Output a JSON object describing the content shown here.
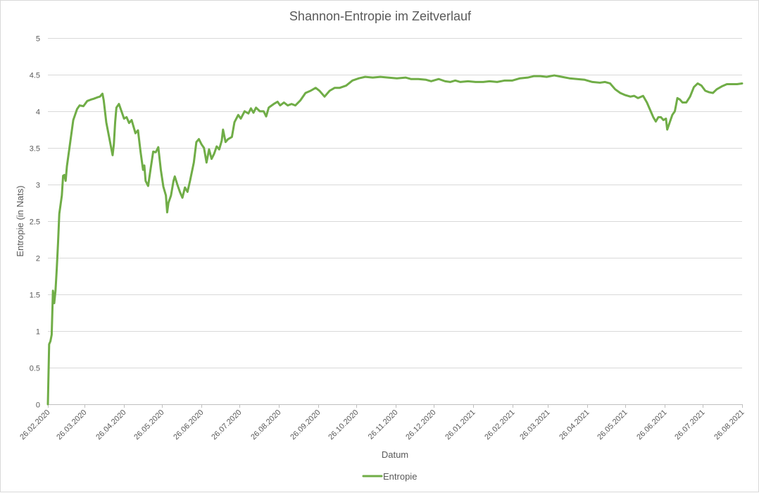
{
  "chart_data": {
    "type": "line",
    "title": "Shannon-Entropie  im Zeitverlauf",
    "xlabel": "Datum",
    "ylabel": "Entropie (in Nats)",
    "ylim": [
      0,
      5
    ],
    "yticks": [
      "0",
      "0.5",
      "1",
      "1.5",
      "2",
      "2.5",
      "3",
      "3.5",
      "4",
      "4.5",
      "5"
    ],
    "xlim": [
      "2020-02-26",
      "2021-08-26"
    ],
    "xticks": [
      "26.02.2020",
      "26.03.2020",
      "26.04.2020",
      "26.05.2020",
      "26.06.2020",
      "26.07.2020",
      "26.08.2020",
      "26.09.2020",
      "26.10.2020",
      "26.11.2020",
      "26.12.2020",
      "26.01.2021",
      "26.02.2021",
      "26.03.2021",
      "26.04.2021",
      "26.05.2021",
      "26.06.2021",
      "26.07.2021",
      "26.08.2021"
    ],
    "grid": true,
    "legend_position": "bottom",
    "series": [
      {
        "name": "Entropie",
        "color": "#70ad47",
        "points": [
          [
            "2020-02-26",
            0.0
          ],
          [
            "2020-02-27",
            0.82
          ],
          [
            "2020-02-28",
            0.86
          ],
          [
            "2020-02-29",
            0.95
          ],
          [
            "2020-03-01",
            1.55
          ],
          [
            "2020-03-02",
            1.38
          ],
          [
            "2020-03-03",
            1.55
          ],
          [
            "2020-03-04",
            1.85
          ],
          [
            "2020-03-05",
            2.2
          ],
          [
            "2020-03-06",
            2.6
          ],
          [
            "2020-03-08",
            2.85
          ],
          [
            "2020-03-09",
            3.12
          ],
          [
            "2020-03-10",
            3.13
          ],
          [
            "2020-03-11",
            3.05
          ],
          [
            "2020-03-12",
            3.25
          ],
          [
            "2020-03-14",
            3.5
          ],
          [
            "2020-03-17",
            3.88
          ],
          [
            "2020-03-20",
            4.03
          ],
          [
            "2020-03-22",
            4.08
          ],
          [
            "2020-03-25",
            4.07
          ],
          [
            "2020-03-28",
            4.14
          ],
          [
            "2020-03-31",
            4.16
          ],
          [
            "2020-04-02",
            4.17
          ],
          [
            "2020-04-05",
            4.19
          ],
          [
            "2020-04-07",
            4.2
          ],
          [
            "2020-04-09",
            4.24
          ],
          [
            "2020-04-10",
            4.15
          ],
          [
            "2020-04-12",
            3.85
          ],
          [
            "2020-04-15",
            3.58
          ],
          [
            "2020-04-17",
            3.4
          ],
          [
            "2020-04-18",
            3.55
          ],
          [
            "2020-04-19",
            3.85
          ],
          [
            "2020-04-20",
            4.05
          ],
          [
            "2020-04-22",
            4.1
          ],
          [
            "2020-04-24",
            4.0
          ],
          [
            "2020-04-26",
            3.9
          ],
          [
            "2020-04-28",
            3.92
          ],
          [
            "2020-04-30",
            3.84
          ],
          [
            "2020-05-02",
            3.88
          ],
          [
            "2020-05-05",
            3.7
          ],
          [
            "2020-05-07",
            3.74
          ],
          [
            "2020-05-09",
            3.45
          ],
          [
            "2020-05-11",
            3.2
          ],
          [
            "2020-05-12",
            3.26
          ],
          [
            "2020-05-13",
            3.05
          ],
          [
            "2020-05-15",
            2.98
          ],
          [
            "2020-05-17",
            3.22
          ],
          [
            "2020-05-19",
            3.45
          ],
          [
            "2020-05-21",
            3.44
          ],
          [
            "2020-05-23",
            3.51
          ],
          [
            "2020-05-25",
            3.2
          ],
          [
            "2020-05-27",
            2.97
          ],
          [
            "2020-05-29",
            2.85
          ],
          [
            "2020-05-30",
            2.62
          ],
          [
            "2020-05-31",
            2.75
          ],
          [
            "2020-06-02",
            2.85
          ],
          [
            "2020-06-04",
            3.05
          ],
          [
            "2020-06-05",
            3.11
          ],
          [
            "2020-06-07",
            3.0
          ],
          [
            "2020-06-09",
            2.9
          ],
          [
            "2020-06-11",
            2.82
          ],
          [
            "2020-06-13",
            2.96
          ],
          [
            "2020-06-15",
            2.9
          ],
          [
            "2020-06-17",
            3.05
          ],
          [
            "2020-06-20",
            3.3
          ],
          [
            "2020-06-22",
            3.58
          ],
          [
            "2020-06-24",
            3.62
          ],
          [
            "2020-06-26",
            3.55
          ],
          [
            "2020-06-28",
            3.5
          ],
          [
            "2020-06-30",
            3.3
          ],
          [
            "2020-07-02",
            3.48
          ],
          [
            "2020-07-04",
            3.35
          ],
          [
            "2020-07-06",
            3.42
          ],
          [
            "2020-07-08",
            3.52
          ],
          [
            "2020-07-10",
            3.48
          ],
          [
            "2020-07-12",
            3.6
          ],
          [
            "2020-07-13",
            3.75
          ],
          [
            "2020-07-15",
            3.58
          ],
          [
            "2020-07-17",
            3.62
          ],
          [
            "2020-07-20",
            3.65
          ],
          [
            "2020-07-22",
            3.85
          ],
          [
            "2020-07-25",
            3.95
          ],
          [
            "2020-07-27",
            3.9
          ],
          [
            "2020-07-30",
            4.0
          ],
          [
            "2020-08-02",
            3.97
          ],
          [
            "2020-08-04",
            4.04
          ],
          [
            "2020-08-06",
            3.98
          ],
          [
            "2020-08-08",
            4.05
          ],
          [
            "2020-08-11",
            4.0
          ],
          [
            "2020-08-14",
            4.0
          ],
          [
            "2020-08-16",
            3.93
          ],
          [
            "2020-08-18",
            4.05
          ],
          [
            "2020-08-22",
            4.1
          ],
          [
            "2020-08-25",
            4.13
          ],
          [
            "2020-08-27",
            4.08
          ],
          [
            "2020-08-30",
            4.12
          ],
          [
            "2020-09-02",
            4.08
          ],
          [
            "2020-09-05",
            4.1
          ],
          [
            "2020-09-08",
            4.08
          ],
          [
            "2020-09-12",
            4.15
          ],
          [
            "2020-09-16",
            4.25
          ],
          [
            "2020-09-20",
            4.28
          ],
          [
            "2020-09-24",
            4.32
          ],
          [
            "2020-09-27",
            4.28
          ],
          [
            "2020-10-01",
            4.2
          ],
          [
            "2020-10-05",
            4.28
          ],
          [
            "2020-10-09",
            4.32
          ],
          [
            "2020-10-13",
            4.32
          ],
          [
            "2020-10-18",
            4.35
          ],
          [
            "2020-10-23",
            4.42
          ],
          [
            "2020-10-28",
            4.45
          ],
          [
            "2020-11-02",
            4.47
          ],
          [
            "2020-11-08",
            4.46
          ],
          [
            "2020-11-14",
            4.47
          ],
          [
            "2020-11-20",
            4.46
          ],
          [
            "2020-11-27",
            4.45
          ],
          [
            "2020-12-04",
            4.46
          ],
          [
            "2020-12-08",
            4.44
          ],
          [
            "2020-12-14",
            4.44
          ],
          [
            "2020-12-20",
            4.43
          ],
          [
            "2020-12-24",
            4.41
          ],
          [
            "2020-12-30",
            4.44
          ],
          [
            "2021-01-04",
            4.41
          ],
          [
            "2021-01-08",
            4.4
          ],
          [
            "2021-01-12",
            4.42
          ],
          [
            "2021-01-16",
            4.4
          ],
          [
            "2021-01-22",
            4.41
          ],
          [
            "2021-01-28",
            4.4
          ],
          [
            "2021-02-03",
            4.4
          ],
          [
            "2021-02-08",
            4.41
          ],
          [
            "2021-02-14",
            4.4
          ],
          [
            "2021-02-20",
            4.42
          ],
          [
            "2021-02-26",
            4.42
          ],
          [
            "2021-03-04",
            4.45
          ],
          [
            "2021-03-10",
            4.46
          ],
          [
            "2021-03-15",
            4.48
          ],
          [
            "2021-03-20",
            4.48
          ],
          [
            "2021-03-25",
            4.47
          ],
          [
            "2021-03-31",
            4.49
          ],
          [
            "2021-04-06",
            4.47
          ],
          [
            "2021-04-12",
            4.45
          ],
          [
            "2021-04-18",
            4.44
          ],
          [
            "2021-04-24",
            4.43
          ],
          [
            "2021-04-30",
            4.4
          ],
          [
            "2021-05-06",
            4.39
          ],
          [
            "2021-05-10",
            4.4
          ],
          [
            "2021-05-14",
            4.38
          ],
          [
            "2021-05-18",
            4.3
          ],
          [
            "2021-05-22",
            4.25
          ],
          [
            "2021-05-26",
            4.22
          ],
          [
            "2021-05-30",
            4.2
          ],
          [
            "2021-06-02",
            4.21
          ],
          [
            "2021-06-05",
            4.18
          ],
          [
            "2021-06-09",
            4.21
          ],
          [
            "2021-06-12",
            4.12
          ],
          [
            "2021-06-15",
            4.0
          ],
          [
            "2021-06-17",
            3.92
          ],
          [
            "2021-06-19",
            3.86
          ],
          [
            "2021-06-21",
            3.92
          ],
          [
            "2021-06-23",
            3.92
          ],
          [
            "2021-06-25",
            3.88
          ],
          [
            "2021-06-27",
            3.9
          ],
          [
            "2021-06-28",
            3.75
          ],
          [
            "2021-06-30",
            3.85
          ],
          [
            "2021-07-02",
            3.95
          ],
          [
            "2021-07-04",
            4.0
          ],
          [
            "2021-07-06",
            4.18
          ],
          [
            "2021-07-08",
            4.16
          ],
          [
            "2021-07-10",
            4.12
          ],
          [
            "2021-07-13",
            4.12
          ],
          [
            "2021-07-16",
            4.2
          ],
          [
            "2021-07-19",
            4.33
          ],
          [
            "2021-07-22",
            4.38
          ],
          [
            "2021-07-25",
            4.35
          ],
          [
            "2021-07-28",
            4.28
          ],
          [
            "2021-07-31",
            4.26
          ],
          [
            "2021-08-03",
            4.25
          ],
          [
            "2021-08-06",
            4.3
          ],
          [
            "2021-08-10",
            4.34
          ],
          [
            "2021-08-14",
            4.37
          ],
          [
            "2021-08-18",
            4.37
          ],
          [
            "2021-08-22",
            4.37
          ],
          [
            "2021-08-26",
            4.38
          ]
        ]
      }
    ]
  }
}
